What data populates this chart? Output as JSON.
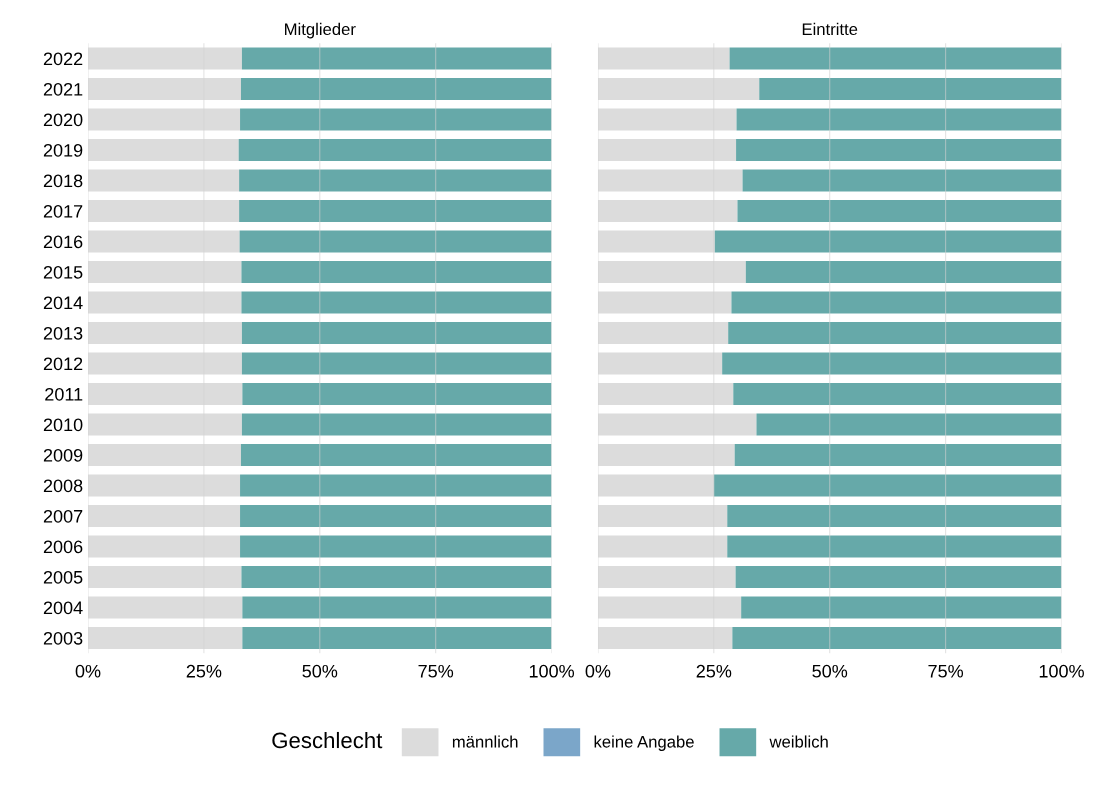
{
  "chart_data": [
    {
      "type": "bar",
      "orientation": "horizontal",
      "stacked": true,
      "title": "Mitglieder",
      "legend_title": "Geschlecht",
      "legend": "bottom",
      "grid": "x",
      "categories": [
        "2022",
        "2021",
        "2020",
        "2019",
        "2018",
        "2017",
        "2016",
        "2015",
        "2014",
        "2013",
        "2012",
        "2011",
        "2010",
        "2009",
        "2008",
        "2007",
        "2006",
        "2005",
        "2004",
        "2003"
      ],
      "xlim": [
        0,
        100
      ],
      "xticks": [
        {
          "value": 0,
          "label": "0%"
        },
        {
          "value": 25,
          "label": "25%"
        },
        {
          "value": 50,
          "label": "50%"
        },
        {
          "value": 75,
          "label": "75%"
        },
        {
          "value": 100,
          "label": "100%"
        }
      ],
      "series": [
        {
          "name": "männlich",
          "color": "#dcdcdc",
          "values": [
            33.2,
            33.0,
            32.8,
            32.5,
            32.6,
            32.6,
            32.7,
            33.1,
            33.1,
            33.2,
            33.2,
            33.3,
            33.2,
            33.0,
            32.8,
            32.8,
            32.8,
            33.1,
            33.3,
            33.3
          ]
        },
        {
          "name": "keine Angabe",
          "color": "#7ba6c9",
          "values": [
            0,
            0,
            0,
            0,
            0,
            0,
            0,
            0,
            0,
            0,
            0,
            0,
            0,
            0,
            0,
            0,
            0,
            0,
            0,
            0
          ]
        },
        {
          "name": "weiblich",
          "color": "#66a9a9",
          "values": [
            66.8,
            67.0,
            67.2,
            67.5,
            67.4,
            67.4,
            67.3,
            66.9,
            66.9,
            66.8,
            66.8,
            66.7,
            66.8,
            67.0,
            67.2,
            67.2,
            67.2,
            66.9,
            66.7,
            66.7
          ]
        }
      ]
    },
    {
      "type": "bar",
      "orientation": "horizontal",
      "stacked": true,
      "title": "Eintritte",
      "grid": "x",
      "tick_labels": "x",
      "categories": [
        "2022",
        "2021",
        "2020",
        "2019",
        "2018",
        "2017",
        "2016",
        "2015",
        "2014",
        "2013",
        "2012",
        "2011",
        "2010",
        "2009",
        "2008",
        "2007",
        "2006",
        "2005",
        "2004",
        "2003"
      ],
      "xlim": [
        0,
        100
      ],
      "xticks": [
        {
          "value": 0,
          "label": "0%"
        },
        {
          "value": 25,
          "label": "25%"
        },
        {
          "value": 50,
          "label": "50%"
        },
        {
          "value": 75,
          "label": "75%"
        },
        {
          "value": 100,
          "label": "100%"
        }
      ],
      "series": [
        {
          "color": "#dcdcdc",
          "values": [
            28.4,
            34.8,
            29.9,
            29.8,
            31.2,
            30.1,
            25.2,
            31.9,
            28.8,
            28.1,
            26.8,
            29.2,
            34.2,
            29.5,
            25.0,
            27.9,
            27.9,
            29.7,
            30.9,
            29.0
          ]
        },
        {
          "color": "#7ba6c9",
          "values": [
            0,
            0,
            0,
            0,
            0,
            0,
            0,
            0,
            0,
            0,
            0,
            0,
            0,
            0,
            0,
            0,
            0,
            0,
            0,
            0
          ]
        },
        {
          "color": "#66a9a9",
          "values": [
            71.6,
            65.2,
            70.1,
            70.2,
            68.8,
            69.9,
            74.8,
            68.1,
            71.2,
            71.9,
            73.2,
            70.8,
            65.8,
            70.5,
            75.0,
            72.1,
            72.1,
            70.3,
            69.1,
            71.0
          ]
        }
      ]
    }
  ]
}
